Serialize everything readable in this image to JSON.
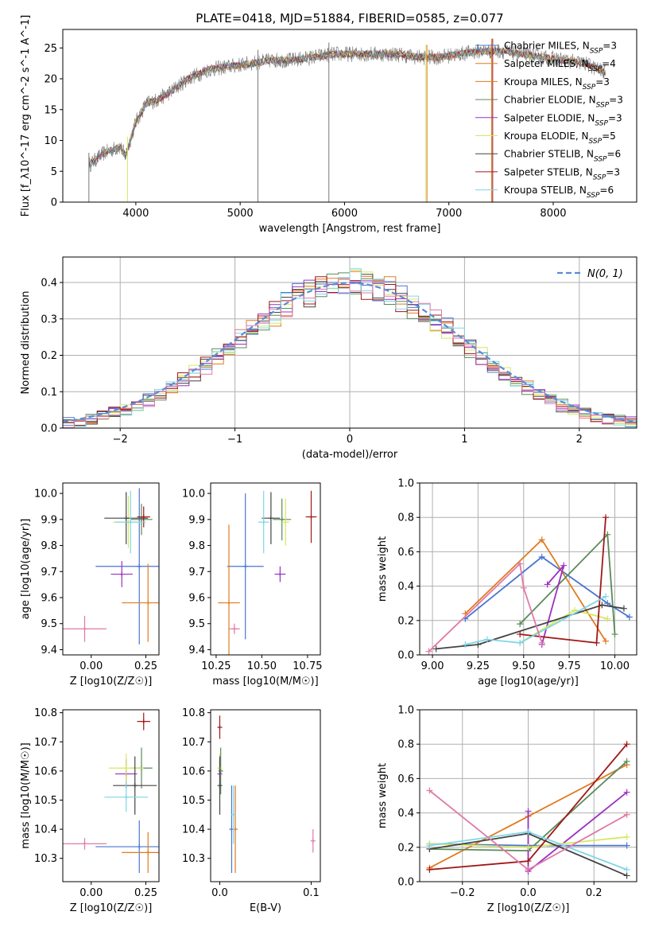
{
  "figure": {
    "suptitle": "PLATE=0418, MJD=51884, FIBERID=0585, z=0.077"
  },
  "colors": {
    "c1": "#4a74d0",
    "c2": "#e07b20",
    "c3": "#e07b20",
    "c4": "#5a8a5a",
    "c5": "#9b30c0",
    "c6": "#d6e860",
    "c7": "#444444",
    "c8": "#a01818",
    "c9": "#7fd6e6",
    "pink": "#e07aa8",
    "norm": "#5b8bd8",
    "spec": "#7a7a7a"
  },
  "chart_data": [
    {
      "type": "line",
      "title": "PLATE=0418, MJD=51884, FIBERID=0585, z=0.077",
      "xlabel": "wavelength [Angstrom, rest frame]",
      "ylabel": "Flux [f_λ10^-17 erg cm^-2 s^-1 A^-1]",
      "xlim": [
        3300,
        8800
      ],
      "ylim": [
        0,
        28
      ],
      "xticks": [
        4000,
        5000,
        6000,
        7000,
        8000
      ],
      "yticks": [
        0,
        5,
        10,
        15,
        20,
        25
      ],
      "grid": false,
      "legend": "top-right",
      "continuum": {
        "x": [
          3550,
          3700,
          3850,
          3900,
          4000,
          4100,
          4200,
          4300,
          4500,
          4700,
          4900,
          5100,
          5300,
          5500,
          5700,
          5900,
          6100,
          6300,
          6500,
          6700,
          6900,
          7100,
          7300,
          7500,
          7700,
          7900,
          8100,
          8300,
          8500
        ],
        "y": [
          6,
          8,
          9,
          7.5,
          13,
          16,
          16.5,
          17.5,
          20,
          21.5,
          22,
          22.5,
          23,
          23,
          23.5,
          24,
          24,
          24,
          24,
          23.5,
          23.5,
          24,
          24.5,
          24.5,
          24,
          23.5,
          23,
          22.5,
          21
        ]
      },
      "series": [
        {
          "name": "Chabrier MILES, N_SSP=3"
        },
        {
          "name": "Salpeter MILES, N_SSP=4"
        },
        {
          "name": "Kroupa MILES, N_SSP=3"
        },
        {
          "name": "Chabrier ELODIE, N_SSP=3"
        },
        {
          "name": "Salpeter ELODIE, N_SSP=3"
        },
        {
          "name": "Kroupa ELODIE, N_SSP=5"
        },
        {
          "name": "Chabrier STELIB, N_SSP=6"
        },
        {
          "name": "Salpeter STELIB, N_SSP=3"
        },
        {
          "name": "Kroupa STELIB, N_SSP=6"
        }
      ],
      "vlines": [
        3550,
        3920,
        5170,
        5850,
        6780,
        6790,
        7410,
        7420
      ]
    },
    {
      "type": "line",
      "xlabel": "(data-model)/error",
      "ylabel": "Normed distribution",
      "xlim": [
        -2.5,
        2.5
      ],
      "ylim": [
        0,
        0.47
      ],
      "xticks": [
        -2,
        -1,
        0,
        1,
        2
      ],
      "yticks": [
        0.0,
        0.1,
        0.2,
        0.3,
        0.4
      ],
      "grid": true,
      "legend": "top-right",
      "legend_label": "N(0,1)",
      "hist_bins": 50
    },
    {
      "type": "scatter",
      "xlabel": "Z [log10(Z/Z☉)]",
      "ylabel": "age [log10(age/yr)]",
      "xlim": [
        -0.13,
        0.31
      ],
      "ylim": [
        9.38,
        10.04
      ],
      "xticks": [
        0.0,
        0.25
      ],
      "yticks": [
        9.4,
        9.5,
        9.6,
        9.7,
        9.8,
        9.9,
        10.0
      ],
      "points": [
        {
          "x": 0.22,
          "y": 9.72,
          "xerr": 0.2,
          "yerr": 0.3,
          "c": "c1"
        },
        {
          "x": 0.26,
          "y": 9.58,
          "xerr": 0.12,
          "yerr": 0.15,
          "c": "c2"
        },
        {
          "x": 0.23,
          "y": 9.9,
          "xerr": 0.05,
          "yerr": 0.06,
          "c": "c4"
        },
        {
          "x": 0.14,
          "y": 9.69,
          "xerr": 0.05,
          "yerr": 0.05,
          "c": "c5"
        },
        {
          "x": 0.17,
          "y": 9.89,
          "xerr": 0.07,
          "yerr": 0.1,
          "c": "c6"
        },
        {
          "x": 0.16,
          "y": 9.905,
          "xerr": 0.1,
          "yerr": 0.1,
          "c": "c7"
        },
        {
          "x": 0.24,
          "y": 9.91,
          "xerr": 0.03,
          "yerr": 0.04,
          "c": "c8"
        },
        {
          "x": 0.18,
          "y": 9.89,
          "xerr": 0.07,
          "yerr": 0.12,
          "c": "c9"
        },
        {
          "x": -0.03,
          "y": 9.48,
          "xerr": 0.1,
          "yerr": 0.05,
          "c": "pink"
        }
      ]
    },
    {
      "type": "scatter",
      "xlabel": "mass [log10(M/M☉)]",
      "ylabel": "",
      "xlim": [
        10.22,
        10.82
      ],
      "ylim": [
        9.38,
        10.04
      ],
      "xticks": [
        10.25,
        10.5,
        10.75
      ],
      "yticks": [
        9.4,
        9.5,
        9.6,
        9.7,
        9.8,
        9.9,
        10.0
      ],
      "points": [
        {
          "x": 10.41,
          "y": 9.72,
          "xerr": 0.1,
          "yerr": 0.28,
          "c": "c1"
        },
        {
          "x": 10.32,
          "y": 9.58,
          "xerr": 0.06,
          "yerr": 0.3,
          "c": "c2"
        },
        {
          "x": 10.61,
          "y": 9.9,
          "xerr": 0.05,
          "yerr": 0.08,
          "c": "c4"
        },
        {
          "x": 10.6,
          "y": 9.69,
          "xerr": 0.03,
          "yerr": 0.03,
          "c": "c5"
        },
        {
          "x": 10.63,
          "y": 9.89,
          "xerr": 0.02,
          "yerr": 0.09,
          "c": "c6"
        },
        {
          "x": 10.55,
          "y": 9.905,
          "xerr": 0.05,
          "yerr": 0.1,
          "c": "c7"
        },
        {
          "x": 10.77,
          "y": 9.91,
          "xerr": 0.03,
          "yerr": 0.1,
          "c": "c8"
        },
        {
          "x": 10.51,
          "y": 9.89,
          "xerr": 0.03,
          "yerr": 0.12,
          "c": "c9"
        },
        {
          "x": 10.35,
          "y": 9.48,
          "xerr": 0.03,
          "yerr": 0.02,
          "c": "pink"
        }
      ]
    },
    {
      "type": "line",
      "xlabel": "age [log10(age/yr)]",
      "ylabel": "mass weight",
      "xlim": [
        8.93,
        10.12
      ],
      "ylim": [
        0,
        1.0
      ],
      "xticks": [
        9.0,
        9.25,
        9.5,
        9.75,
        10.0
      ],
      "yticks": [
        0.0,
        0.2,
        0.4,
        0.6,
        0.8,
        1.0
      ],
      "grid": true,
      "series": [
        {
          "c": "c1",
          "x": [
            9.18,
            9.6,
            9.96,
            10.08
          ],
          "y": [
            0.21,
            0.57,
            0.3,
            0.22
          ]
        },
        {
          "c": "c2",
          "x": [
            9.18,
            9.6,
            9.95
          ],
          "y": [
            0.24,
            0.67,
            0.08
          ]
        },
        {
          "c": "c4",
          "x": [
            9.48,
            9.96,
            10.0
          ],
          "y": [
            0.18,
            0.7,
            0.12
          ]
        },
        {
          "c": "c5",
          "x": [
            9.6,
            9.72,
            9.63
          ],
          "y": [
            0.06,
            0.52,
            0.41
          ]
        },
        {
          "c": "c6",
          "x": [
            9.48,
            9.78,
            9.96
          ],
          "y": [
            0.07,
            0.26,
            0.21
          ]
        },
        {
          "c": "c7",
          "x": [
            9.02,
            9.25,
            9.93,
            10.05
          ],
          "y": [
            0.035,
            0.06,
            0.29,
            0.27
          ]
        },
        {
          "c": "c8",
          "x": [
            9.48,
            9.9,
            9.95
          ],
          "y": [
            0.12,
            0.07,
            0.8
          ]
        },
        {
          "c": "c9",
          "x": [
            9.18,
            9.3,
            9.48,
            9.95
          ],
          "y": [
            0.06,
            0.09,
            0.07,
            0.34
          ]
        },
        {
          "c": "pink",
          "x": [
            8.98,
            9.48,
            9.5,
            9.6
          ],
          "y": [
            0.02,
            0.53,
            0.39,
            0.07
          ]
        }
      ]
    },
    {
      "type": "scatter",
      "xlabel": "Z [log10(Z/Z☉)]",
      "ylabel": "mass [log10(M/M☉)]",
      "xlim": [
        -0.13,
        0.31
      ],
      "ylim": [
        10.22,
        10.81
      ],
      "xticks": [
        0.0,
        0.25
      ],
      "yticks": [
        10.3,
        10.4,
        10.5,
        10.6,
        10.7,
        10.8
      ],
      "points": [
        {
          "x": 0.22,
          "y": 10.34,
          "xerr": 0.2,
          "yerr": 0.09,
          "c": "c1"
        },
        {
          "x": 0.26,
          "y": 10.32,
          "xerr": 0.12,
          "yerr": 0.07,
          "c": "c2"
        },
        {
          "x": 0.23,
          "y": 10.61,
          "xerr": 0.05,
          "yerr": 0.07,
          "c": "c4"
        },
        {
          "x": 0.16,
          "y": 10.59,
          "xerr": 0.05,
          "yerr": 0.05,
          "c": "c5"
        },
        {
          "x": 0.16,
          "y": 10.61,
          "xerr": 0.08,
          "yerr": 0.05,
          "c": "c6"
        },
        {
          "x": 0.2,
          "y": 10.55,
          "xerr": 0.1,
          "yerr": 0.1,
          "c": "c7"
        },
        {
          "x": 0.24,
          "y": 10.77,
          "xerr": 0.03,
          "yerr": 0.03,
          "c": "c8"
        },
        {
          "x": 0.16,
          "y": 10.51,
          "xerr": 0.1,
          "yerr": 0.05,
          "c": "c9"
        },
        {
          "x": -0.03,
          "y": 10.35,
          "xerr": 0.1,
          "yerr": 0.02,
          "c": "pink"
        }
      ]
    },
    {
      "type": "scatter",
      "xlabel": "E(B-V)",
      "ylabel": "",
      "xlim": [
        -0.01,
        0.11
      ],
      "ylim": [
        10.22,
        10.81
      ],
      "xticks": [
        0.0,
        0.1
      ],
      "yticks": [
        10.3,
        10.4,
        10.5,
        10.6,
        10.7,
        10.8
      ],
      "points": [
        {
          "x": 0.013,
          "y": 10.4,
          "yerr": 0.15,
          "c": "c1"
        },
        {
          "x": 0.017,
          "y": 10.4,
          "yerr": 0.15,
          "c": "c2"
        },
        {
          "x": 0.001,
          "y": 10.6,
          "yerr": 0.08,
          "c": "c4"
        },
        {
          "x": 0.0,
          "y": 10.59,
          "yerr": 0.05,
          "c": "c5"
        },
        {
          "x": 0.0,
          "y": 10.61,
          "yerr": 0.05,
          "c": "c6"
        },
        {
          "x": 0.0,
          "y": 10.55,
          "yerr": 0.1,
          "c": "c7"
        },
        {
          "x": 0.0,
          "y": 10.75,
          "yerr": 0.04,
          "c": "c8"
        },
        {
          "x": 0.015,
          "y": 10.45,
          "yerr": 0.1,
          "c": "c9"
        },
        {
          "x": 0.102,
          "y": 10.36,
          "yerr": 0.04,
          "c": "pink"
        }
      ]
    },
    {
      "type": "line",
      "xlabel": "Z [log10(Z/Z☉)]",
      "ylabel": "mass weight",
      "xlim": [
        -0.33,
        0.33
      ],
      "ylim": [
        0,
        1.0
      ],
      "xticks": [
        -0.2,
        0.0,
        0.2
      ],
      "yticks": [
        0.0,
        0.2,
        0.4,
        0.6,
        0.8,
        1.0
      ],
      "grid": true,
      "series": [
        {
          "c": "c1",
          "x": [
            -0.3,
            0.0,
            0.3
          ],
          "y": [
            0.22,
            0.21,
            0.21
          ]
        },
        {
          "c": "c2",
          "x": [
            -0.3,
            0.0,
            0.3
          ],
          "y": [
            0.08,
            0.38,
            0.68
          ]
        },
        {
          "c": "c4",
          "x": [
            -0.3,
            0.0,
            0.3
          ],
          "y": [
            0.19,
            0.18,
            0.7
          ]
        },
        {
          "c": "c5",
          "x": [
            0.0,
            0.0,
            0.3
          ],
          "y": [
            0.41,
            0.06,
            0.52
          ]
        },
        {
          "c": "c6",
          "x": [
            -0.3,
            0.0,
            0.3
          ],
          "y": [
            0.22,
            0.2,
            0.26
          ]
        },
        {
          "c": "c7",
          "x": [
            -0.3,
            0.0,
            0.3
          ],
          "y": [
            0.19,
            0.28,
            0.035
          ]
        },
        {
          "c": "c8",
          "x": [
            -0.3,
            0.0,
            0.3
          ],
          "y": [
            0.07,
            0.12,
            0.8
          ]
        },
        {
          "c": "c9",
          "x": [
            -0.3,
            0.0,
            0.3
          ],
          "y": [
            0.21,
            0.29,
            0.07
          ]
        },
        {
          "c": "pink",
          "x": [
            -0.3,
            0.0,
            0.3
          ],
          "y": [
            0.53,
            0.07,
            0.39
          ]
        }
      ]
    }
  ]
}
